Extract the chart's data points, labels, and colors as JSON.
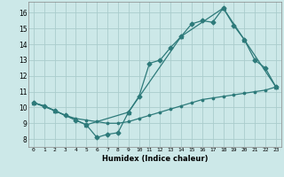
{
  "xlabel": "Humidex (Indice chaleur)",
  "background_color": "#cce8e8",
  "grid_color": "#aacccc",
  "line_color": "#2d7a7a",
  "xlim": [
    -0.5,
    23.5
  ],
  "ylim": [
    7.5,
    16.7
  ],
  "xticks": [
    0,
    1,
    2,
    3,
    4,
    5,
    6,
    7,
    8,
    9,
    10,
    11,
    12,
    13,
    14,
    15,
    16,
    17,
    18,
    19,
    20,
    21,
    22,
    23
  ],
  "yticks": [
    8,
    9,
    10,
    11,
    12,
    13,
    14,
    15,
    16
  ],
  "line1_x": [
    0,
    1,
    2,
    3,
    4,
    5,
    6,
    7,
    8,
    9,
    10,
    11,
    12,
    13,
    14,
    15,
    16,
    17,
    18,
    19,
    20,
    21,
    22,
    23
  ],
  "line1_y": [
    10.3,
    10.1,
    9.8,
    9.5,
    9.2,
    8.9,
    8.1,
    8.3,
    8.4,
    9.7,
    10.7,
    12.8,
    13.0,
    13.8,
    14.5,
    15.3,
    15.5,
    15.4,
    16.3,
    15.2,
    14.3,
    13.0,
    12.5,
    11.3
  ],
  "line2_x": [
    0,
    1,
    2,
    3,
    4,
    5,
    6,
    7,
    8,
    9,
    10,
    11,
    12,
    13,
    14,
    15,
    16,
    17,
    18,
    19,
    20,
    21,
    22,
    23
  ],
  "line2_y": [
    10.3,
    10.1,
    9.8,
    9.5,
    9.3,
    9.2,
    9.1,
    9.0,
    9.0,
    9.1,
    9.3,
    9.5,
    9.7,
    9.9,
    10.1,
    10.3,
    10.5,
    10.6,
    10.7,
    10.8,
    10.9,
    11.0,
    11.1,
    11.3
  ],
  "line3_x": [
    0,
    2,
    5,
    9,
    14,
    18,
    20,
    23
  ],
  "line3_y": [
    10.3,
    9.8,
    8.9,
    9.7,
    14.5,
    16.3,
    14.3,
    11.3
  ],
  "marker_size": 2.5,
  "linewidth": 0.9
}
